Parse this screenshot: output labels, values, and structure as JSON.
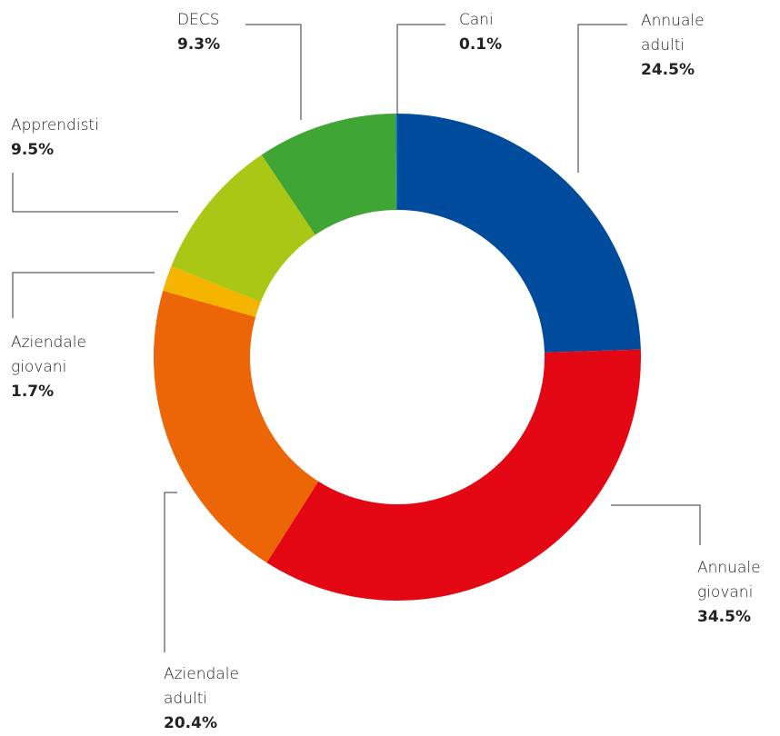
{
  "chart_data": {
    "type": "donut",
    "categories": [
      "Annuale adulti",
      "Annuale giovani",
      "Aziendale adulti",
      "Aziendale giovani",
      "Apprendisti",
      "DECS",
      "Cani"
    ],
    "values": [
      24.5,
      34.5,
      20.4,
      1.7,
      9.5,
      9.3,
      0.1
    ],
    "value_labels": [
      "24.5%",
      "34.5%",
      "20.4%",
      "1.7%",
      "9.5%",
      "9.3%",
      "0.1%"
    ],
    "colors": [
      "#004b9b",
      "#e30613",
      "#ec6608",
      "#f5b400",
      "#a9c714",
      "#3fa535",
      "#0a7ac0"
    ]
  }
}
